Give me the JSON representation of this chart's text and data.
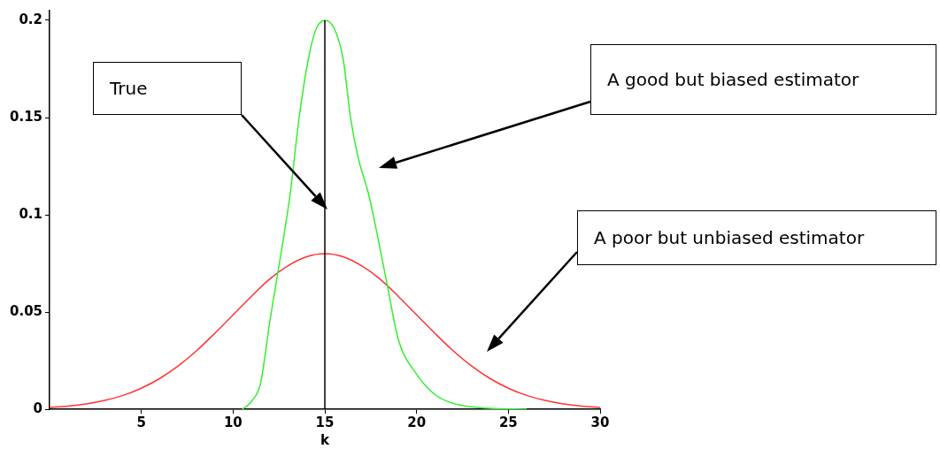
{
  "chart_data": {
    "type": "line",
    "xlabel": "k",
    "xlim": [
      0,
      30
    ],
    "xticks": [
      5,
      10,
      15,
      20,
      25,
      30
    ],
    "ylim": [
      0,
      0.205
    ],
    "yticks": [
      0,
      0.05,
      0.1,
      0.15,
      0.2
    ],
    "grid": false,
    "legend": false,
    "marker": "none",
    "line_style": "solid",
    "series": [
      {
        "color": "#33ee33",
        "x": [
          10.5,
          11,
          11.5,
          12,
          12.4,
          13.1,
          13.6,
          14.1,
          14.5,
          15,
          15.5,
          16,
          16.4,
          16.8,
          17.4,
          18.4,
          19,
          20,
          21,
          22,
          23,
          24,
          26
        ],
        "values": [
          0,
          0.004,
          0.0135,
          0.045,
          0.068,
          0.11,
          0.15,
          0.18,
          0.195,
          0.2,
          0.196,
          0.18,
          0.15,
          0.13,
          0.11,
          0.064,
          0.036,
          0.018,
          0.0075,
          0.003,
          0.0012,
          0.0004,
          0
        ]
      },
      {
        "color": "#ff3333",
        "x": [
          0,
          1,
          2,
          3,
          4,
          5,
          6,
          7,
          8,
          9,
          10,
          11,
          12,
          13,
          14,
          15,
          16,
          17,
          18,
          19,
          20,
          21,
          22,
          23,
          24,
          25,
          26,
          27,
          28,
          29,
          30
        ],
        "values": [
          0.0009,
          0.0016,
          0.0027,
          0.0045,
          0.0071,
          0.0108,
          0.0158,
          0.0222,
          0.03,
          0.039,
          0.0485,
          0.0581,
          0.067,
          0.0738,
          0.0784,
          0.08,
          0.0784,
          0.0738,
          0.067,
          0.0581,
          0.0485,
          0.039,
          0.03,
          0.0222,
          0.0158,
          0.0108,
          0.0071,
          0.0045,
          0.0027,
          0.0016,
          0.0009
        ]
      }
    ],
    "ref_lines": [
      {
        "axis": "x",
        "value": 15,
        "color": "#000000"
      }
    ],
    "annotations": [
      "True",
      "A good but biased estimator",
      "A poor but unbiased estimator"
    ]
  }
}
